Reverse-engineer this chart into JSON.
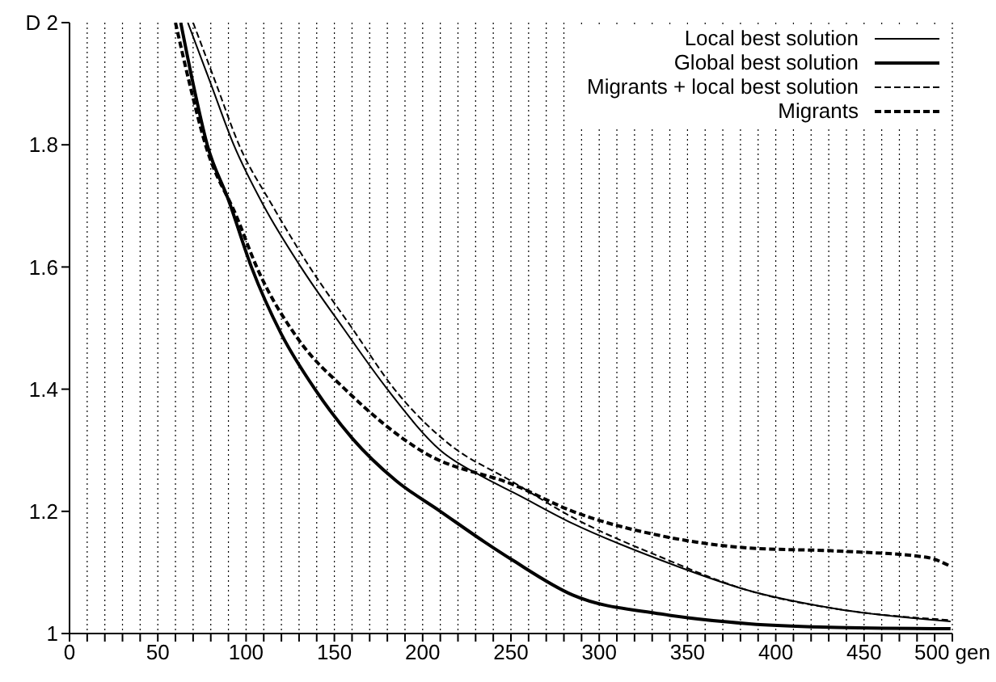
{
  "chart_data": {
    "type": "line",
    "xlim": [
      0,
      500
    ],
    "xticks": [
      0,
      {
        "value": 10,
        "label": null
      },
      {
        "value": 20,
        "label": null
      },
      {
        "value": 30,
        "label": null
      },
      {
        "value": 40,
        "label": null
      },
      50,
      {
        "value": 60,
        "label": null
      },
      {
        "value": 70,
        "label": null
      },
      {
        "value": 80,
        "label": null
      },
      {
        "value": 90,
        "label": null
      },
      100,
      {
        "value": 110,
        "label": null
      },
      {
        "value": 120,
        "label": null
      },
      {
        "value": 130,
        "label": null
      },
      {
        "value": 140,
        "label": null
      },
      150,
      {
        "value": 160,
        "label": null
      },
      {
        "value": 170,
        "label": null
      },
      {
        "value": 180,
        "label": null
      },
      {
        "value": 190,
        "label": null
      },
      200,
      {
        "value": 210,
        "label": null
      },
      {
        "value": 220,
        "label": null
      },
      {
        "value": 230,
        "label": null
      },
      {
        "value": 240,
        "label": null
      },
      250,
      {
        "value": 260,
        "label": null
      },
      {
        "value": 270,
        "label": null
      },
      {
        "value": 280,
        "label": null
      },
      {
        "value": 290,
        "label": null
      },
      300,
      {
        "value": 310,
        "label": null
      },
      {
        "value": 320,
        "label": null
      },
      {
        "value": 330,
        "label": null
      },
      {
        "value": 340,
        "label": null
      },
      350,
      {
        "value": 360,
        "label": null
      },
      {
        "value": 370,
        "label": null
      },
      {
        "value": 380,
        "label": null
      },
      {
        "value": 390,
        "label": null
      },
      400,
      {
        "value": 410,
        "label": null
      },
      {
        "value": 420,
        "label": null
      },
      {
        "value": 430,
        "label": null
      },
      {
        "value": 440,
        "label": null
      },
      450,
      {
        "value": 460,
        "label": null
      },
      {
        "value": 470,
        "label": null
      },
      {
        "value": 480,
        "label": null
      },
      {
        "value": 490,
        "label": null
      },
      {
        "value": 500,
        "label": "500 gen"
      }
    ],
    "ylim": [
      1,
      2
    ],
    "yticks": [
      1,
      1.2,
      1.4,
      1.6,
      1.8,
      {
        "value": 2,
        "label": "D 2"
      }
    ],
    "grid": "x",
    "legend": "top right",
    "marker": "none",
    "series": [
      {
        "name": "Local best solution",
        "color": "#000000",
        "line_style": "solid",
        "x": [
          67,
          80,
          93,
          110,
          131,
          155,
          180,
          210,
          235,
          252,
          285,
          335,
          385,
          435,
          499
        ],
        "values": [
          2,
          1.9,
          1.8,
          1.7,
          1.6,
          1.5,
          1.4,
          1.3,
          1.255,
          1.23,
          1.18,
          1.12,
          1.07,
          1.04,
          1.02
        ]
      },
      {
        "name": "Global best solution",
        "color": "#000000",
        "line_style": "solid",
        "x": [
          63,
          70,
          78,
          90,
          103,
          120,
          139,
          160,
          185,
          210,
          235,
          251,
          285,
          335,
          385,
          435,
          499
        ],
        "values": [
          2,
          1.9,
          1.8,
          1.71,
          1.6,
          1.49,
          1.4,
          1.32,
          1.25,
          1.2,
          1.15,
          1.12,
          1.063,
          1.032,
          1.016,
          1.01,
          1.008
        ]
      },
      {
        "name": "Migrants + local best solution",
        "color": "#000000",
        "line_style": "dashed",
        "x": [
          70,
          83,
          96,
          115,
          136,
          160,
          184,
          215,
          250,
          285,
          335,
          385,
          435,
          499
        ],
        "values": [
          2,
          1.9,
          1.8,
          1.7,
          1.6,
          1.5,
          1.4,
          1.31,
          1.25,
          1.19,
          1.125,
          1.07,
          1.04,
          1.022
        ]
      },
      {
        "name": "Migrants",
        "color": "#000000",
        "line_style": "dashed",
        "x": [
          60,
          68,
          77,
          95,
          106,
          130,
          156,
          201,
          252,
          285,
          335,
          385,
          435,
          485,
          499
        ],
        "values": [
          2,
          1.9,
          1.8,
          1.68,
          1.6,
          1.48,
          1.4,
          1.296,
          1.243,
          1.2,
          1.16,
          1.14,
          1.135,
          1.125,
          1.11
        ]
      }
    ]
  }
}
